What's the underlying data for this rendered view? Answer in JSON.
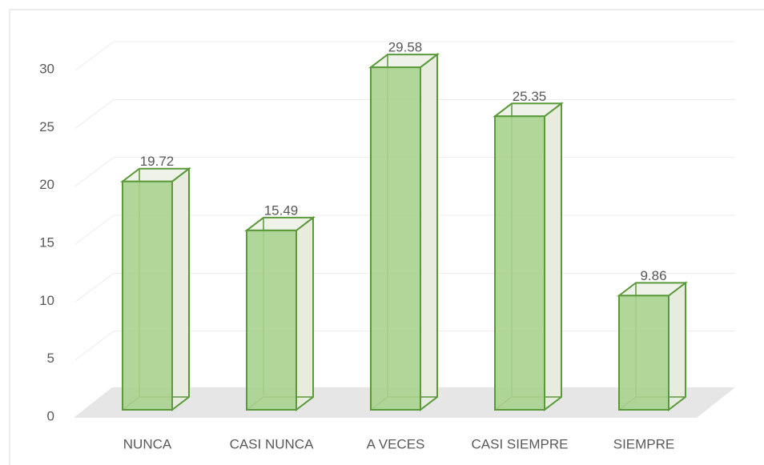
{
  "chart_data": {
    "type": "bar",
    "categories": [
      "NUNCA",
      "CASI NUNCA",
      "A VECES",
      "CASI SIEMPRE",
      "SIEMPRE"
    ],
    "values": [
      19.72,
      15.49,
      29.58,
      25.35,
      9.86
    ],
    "color": "#a9d18e",
    "ylim": [
      0,
      30
    ],
    "yticks": [
      0,
      5,
      10,
      15,
      20,
      25,
      30
    ],
    "grid": true
  }
}
